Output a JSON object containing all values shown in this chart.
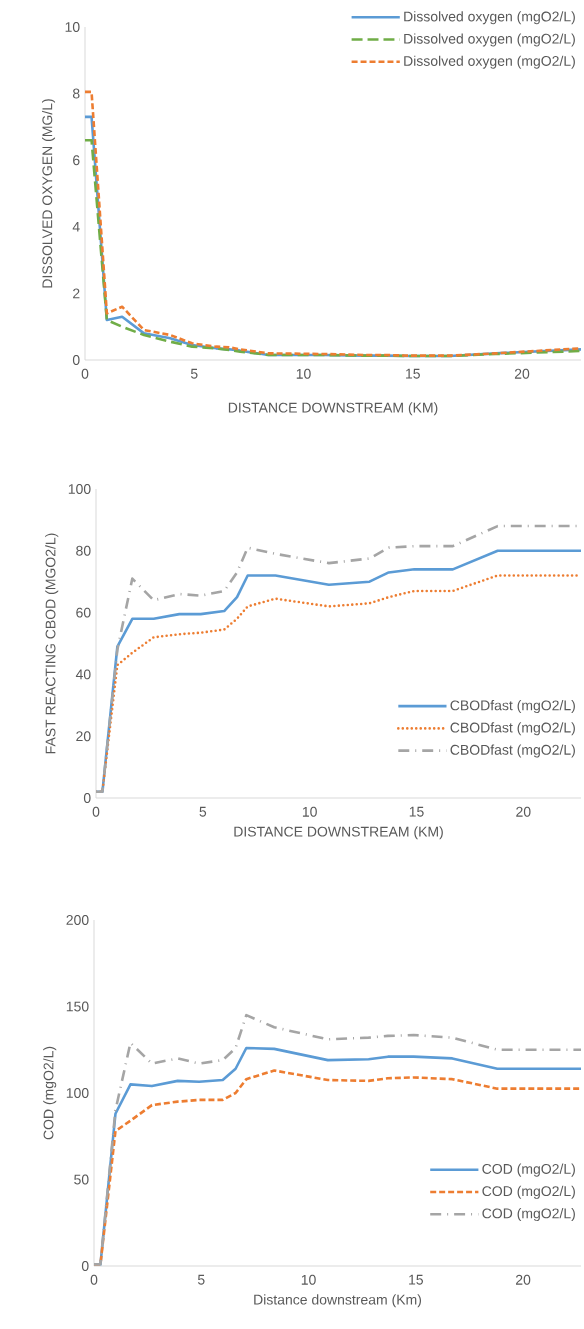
{
  "chart_data": [
    {
      "type": "line",
      "xlabel": "DISTANCE DOWNSTREAM (KM)",
      "ylabel": "DISSOLVED OXYGEN (MG/L)",
      "x": [
        0,
        0.3,
        1.0,
        1.7,
        2.7,
        3.9,
        4.9,
        6.0,
        6.6,
        7.1,
        8.4,
        10.9,
        12.8,
        13.7,
        14.9,
        16.7,
        18.8,
        22.7
      ],
      "xlim": [
        0,
        22.7
      ],
      "xticks": [
        0,
        5,
        10,
        15,
        20
      ],
      "ylim": [
        0,
        10
      ],
      "yticks": [
        0,
        2,
        4,
        6,
        8,
        10
      ],
      "legend": "top right",
      "series": [
        {
          "name": "Dissolved oxygen (mgO2/L)",
          "color": "#5b9bd5",
          "line_style": "solid",
          "values": [
            7.3,
            7.3,
            1.2,
            1.3,
            0.8,
            0.65,
            0.45,
            0.35,
            0.32,
            0.28,
            0.15,
            0.15,
            0.13,
            0.13,
            0.12,
            0.12,
            0.2,
            0.32
          ]
        },
        {
          "name": "Dissolved oxygen (mgO2/L)",
          "color": "#70ad47",
          "line_style": "dashed",
          "values": [
            6.6,
            6.6,
            1.2,
            1.0,
            0.75,
            0.55,
            0.4,
            0.35,
            0.3,
            0.25,
            0.15,
            0.15,
            0.13,
            0.13,
            0.12,
            0.12,
            0.18,
            0.27
          ]
        },
        {
          "name": "Dissolved oxygen (mgO2/L)",
          "color": "#ed7d31",
          "line_style": "dashed",
          "values": [
            8.05,
            8.05,
            1.4,
            1.6,
            0.9,
            0.75,
            0.5,
            0.4,
            0.38,
            0.32,
            0.2,
            0.18,
            0.15,
            0.15,
            0.13,
            0.13,
            0.2,
            0.35
          ]
        }
      ]
    },
    {
      "type": "line",
      "xlabel": "DISTANCE DOWNSTREAM (KM)",
      "ylabel": "FAST REACTING CBOD (MGO2/L)",
      "x": [
        0,
        0.3,
        1.0,
        1.7,
        2.7,
        3.9,
        4.9,
        6.0,
        6.6,
        7.1,
        8.4,
        10.9,
        12.8,
        13.7,
        14.9,
        16.7,
        18.8,
        22.7
      ],
      "xlim": [
        0,
        22.7
      ],
      "xticks": [
        0,
        5,
        10,
        15,
        20
      ],
      "ylim": [
        0,
        100
      ],
      "yticks": [
        0,
        20,
        40,
        60,
        80,
        100
      ],
      "legend": "bottom right",
      "series": [
        {
          "name": "CBODfast (mgO2/L)",
          "color": "#5b9bd5",
          "line_style": "solid",
          "values": [
            2,
            2,
            49,
            58,
            58,
            59.5,
            59.5,
            60.5,
            65,
            72,
            72,
            69,
            70,
            73,
            74,
            74,
            80,
            80
          ]
        },
        {
          "name": "CBODfast (mgO2/L)",
          "color": "#ed7d31",
          "line_style": "dotted",
          "values": [
            2,
            2,
            43,
            47,
            52,
            53,
            53.5,
            54.5,
            58,
            62,
            64.5,
            62,
            63,
            65,
            67,
            67,
            72,
            72
          ]
        },
        {
          "name": "CBODfast (mgO2/L)",
          "color": "#a5a5a5",
          "line_style": "dashdot",
          "values": [
            2,
            2,
            48,
            71,
            64,
            66,
            65.5,
            67,
            73,
            81,
            79,
            76,
            77.5,
            81,
            81.5,
            81.5,
            88,
            88
          ]
        }
      ]
    },
    {
      "type": "line",
      "xlabel": "Distance downstream (Km)",
      "ylabel": "COD (mgO2/L)",
      "x": [
        0,
        0.3,
        1.0,
        1.7,
        2.7,
        3.9,
        4.9,
        6.0,
        6.6,
        7.1,
        8.4,
        10.9,
        12.8,
        13.7,
        14.9,
        16.7,
        18.8,
        22.7
      ],
      "xlim": [
        0,
        22.7
      ],
      "xticks": [
        0,
        5,
        10,
        15,
        20
      ],
      "ylim": [
        0,
        200
      ],
      "yticks": [
        0,
        50,
        100,
        150,
        200
      ],
      "legend": "bottom right",
      "series": [
        {
          "name": "COD (mgO2/L)",
          "color": "#5b9bd5",
          "line_style": "solid",
          "values": [
            1,
            1,
            88,
            105,
            104,
            107,
            106.5,
            107.5,
            114,
            126,
            125.5,
            119,
            119.5,
            121,
            121,
            120,
            114,
            114
          ]
        },
        {
          "name": "COD (mgO2/L)",
          "color": "#ed7d31",
          "line_style": "dashed",
          "values": [
            1,
            1,
            78,
            84,
            93,
            95,
            96,
            96,
            100,
            108,
            113,
            107.5,
            107,
            108.5,
            109,
            108,
            102.5,
            102.5
          ]
        },
        {
          "name": "COD (mgO2/L)",
          "color": "#a5a5a5",
          "line_style": "dashdot",
          "values": [
            1,
            1,
            90,
            129,
            117,
            120,
            117,
            119,
            126,
            145,
            138,
            131,
            132,
            133,
            133.5,
            132,
            125,
            125
          ]
        }
      ]
    }
  ]
}
